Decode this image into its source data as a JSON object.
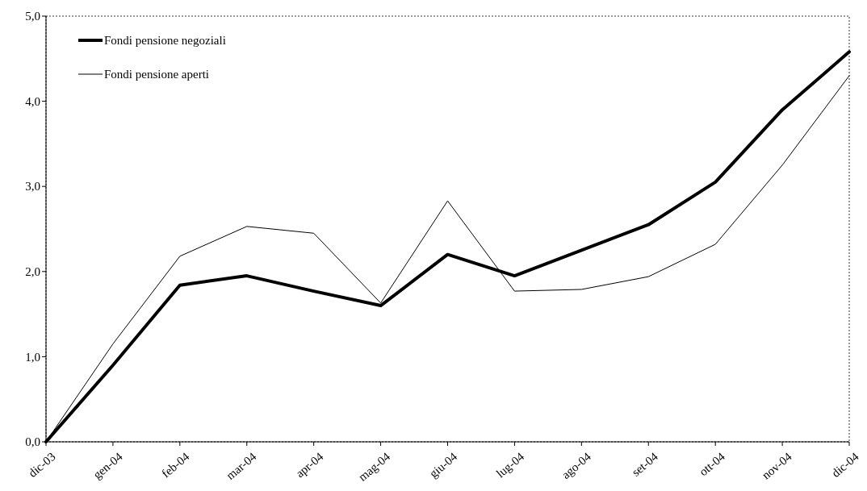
{
  "chart_data": {
    "type": "line",
    "categories": [
      "dic-03",
      "gen-04",
      "feb-04",
      "mar-04",
      "apr-04",
      "mag-04",
      "giu-04",
      "lug-04",
      "ago-04",
      "set-04",
      "ott-04",
      "nov-04",
      "dic-04"
    ],
    "series": [
      {
        "name": "Fondi pensione negoziali",
        "color": "#000000",
        "values": [
          0,
          0.9,
          1.84,
          1.95,
          1.77,
          1.6,
          2.2,
          1.95,
          2.25,
          2.55,
          3.05,
          3.9,
          4.58
        ]
      },
      {
        "name": "Fondi pensione aperti",
        "color": "#000000",
        "values": [
          0,
          1.15,
          2.18,
          2.53,
          2.45,
          1.63,
          2.83,
          1.77,
          1.79,
          1.94,
          2.32,
          3.25,
          4.3
        ]
      }
    ],
    "ylim": [
      0,
      5
    ],
    "yticks": [
      {
        "value": 0,
        "label": "0,0"
      },
      {
        "value": 1,
        "label": "1,0"
      },
      {
        "value": 2,
        "label": "2,0"
      },
      {
        "value": 3,
        "label": "3,0"
      },
      {
        "value": 4,
        "label": "4,0"
      },
      {
        "value": 5,
        "label": "5,0"
      }
    ],
    "legend": "top left",
    "grid": false
  }
}
